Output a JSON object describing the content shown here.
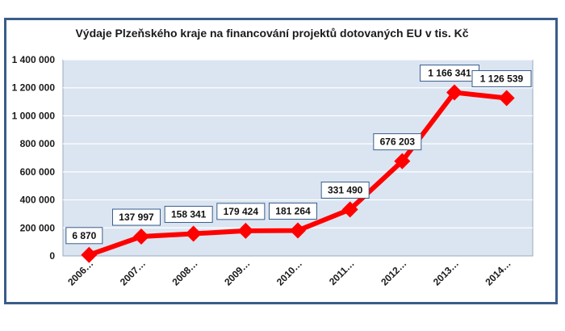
{
  "chart_data": {
    "type": "line",
    "title": "Výdaje Plzeňského kraje na financování projektů dotovaných EU v tis. Kč",
    "categories": [
      "2006…",
      "2007…",
      "2008…",
      "2009…",
      "2010…",
      "2011…",
      "2012…",
      "2013…",
      "2014…"
    ],
    "values": [
      6870,
      137997,
      158341,
      179424,
      181264,
      331490,
      676203,
      1166341,
      1126539
    ],
    "data_labels": [
      "6 870",
      "137 997",
      "158 341",
      "179 424",
      "181 264",
      "331 490",
      "676 203",
      "1 166 341",
      "1 126 539"
    ],
    "yticks": [
      0,
      200000,
      400000,
      600000,
      800000,
      1000000,
      1200000,
      1400000
    ],
    "ytick_labels": [
      "0",
      "200 000",
      "400 000",
      "600 000",
      "800 000",
      "1 000 000",
      "1 200 000",
      "1 400 000"
    ],
    "ylim": [
      0,
      1400000
    ],
    "xlabel": "",
    "ylabel": "",
    "grid": true,
    "legend": "none",
    "colors": {
      "line": "#ff0000",
      "marker": "#ff0000",
      "plot_background": "#dbe5f1",
      "grid": "#ffffff",
      "frame": "#3a5d8a"
    }
  }
}
